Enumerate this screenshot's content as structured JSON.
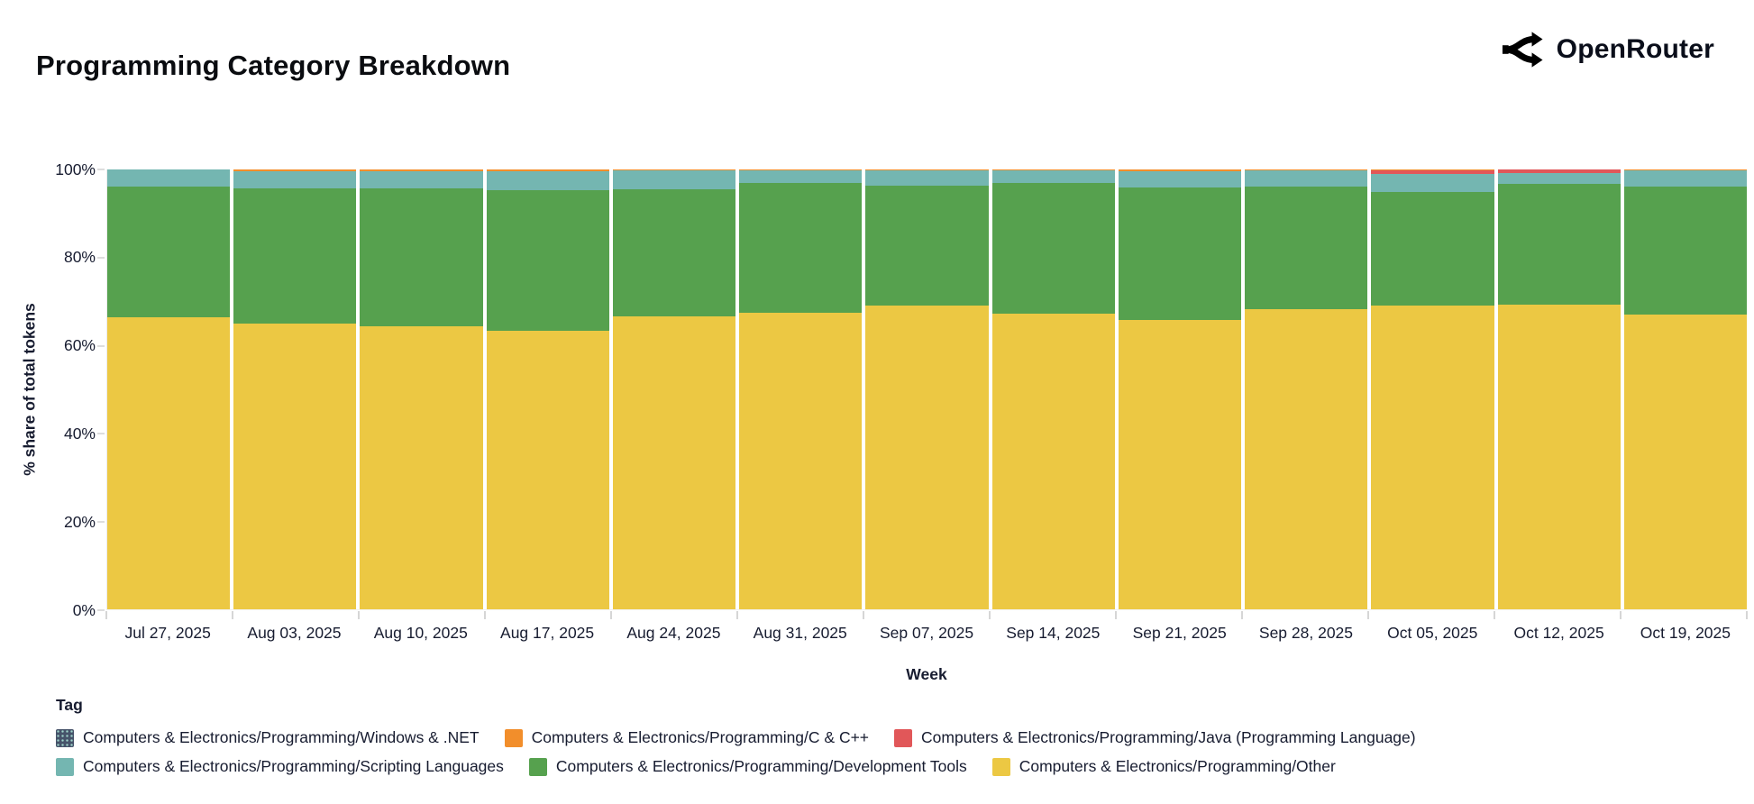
{
  "header": {
    "title": "Programming Category Breakdown",
    "brand": "OpenRouter"
  },
  "legend": {
    "title": "Tag",
    "rows": [
      [
        5,
        4,
        3
      ],
      [
        2,
        1,
        0
      ]
    ]
  },
  "chart_data": {
    "type": "bar",
    "stacked": true,
    "title": "Programming Category Breakdown",
    "xlabel": "Week",
    "ylabel": "% share of total tokens",
    "ylim": [
      0,
      100
    ],
    "yticks": [
      0,
      20,
      40,
      60,
      80,
      100
    ],
    "ytick_suffix": "%",
    "grid": false,
    "legend_position": "bottom",
    "categories": [
      "Jul 27, 2025",
      "Aug 03, 2025",
      "Aug 10, 2025",
      "Aug 17, 2025",
      "Aug 24, 2025",
      "Aug 31, 2025",
      "Sep 07, 2025",
      "Sep 14, 2025",
      "Sep 21, 2025",
      "Sep 28, 2025",
      "Oct 05, 2025",
      "Oct 12, 2025",
      "Oct 19, 2025"
    ],
    "series": [
      {
        "name": "Computers & Electronics/Programming/Other",
        "color": "#ECC843",
        "values": [
          66.3,
          65.0,
          64.4,
          63.4,
          66.5,
          67.5,
          69.1,
          67.3,
          65.8,
          68.3,
          69.1,
          69.3,
          67.1
        ]
      },
      {
        "name": "Computers & Electronics/Programming/Development Tools",
        "color": "#56A14E",
        "values": [
          29.8,
          30.7,
          31.2,
          31.9,
          28.9,
          29.5,
          27.2,
          29.6,
          30.1,
          27.8,
          25.8,
          27.4,
          29.0
        ]
      },
      {
        "name": "Computers & Electronics/Programming/Scripting Languages",
        "color": "#74B6B1",
        "values": [
          3.9,
          3.9,
          4.0,
          4.3,
          4.3,
          2.7,
          3.4,
          2.9,
          3.7,
          3.6,
          4.0,
          2.5,
          3.6
        ]
      },
      {
        "name": "Computers & Electronics/Programming/Java (Programming Language)",
        "color": "#E15759",
        "values": [
          0,
          0,
          0,
          0,
          0,
          0,
          0,
          0,
          0,
          0,
          1.0,
          0.8,
          0
        ]
      },
      {
        "name": "Computers & Electronics/Programming/C & C++",
        "color": "#F28E2B",
        "values": [
          0,
          0.4,
          0.4,
          0.4,
          0.3,
          0.3,
          0.3,
          0.2,
          0.4,
          0.3,
          0.1,
          0,
          0.3
        ]
      },
      {
        "name": "Computers & Electronics/Programming/Windows & .NET",
        "color": "#46536A",
        "pattern": true,
        "values": [
          0,
          0,
          0,
          0,
          0,
          0,
          0,
          0,
          0,
          0,
          0,
          0,
          0
        ]
      }
    ]
  }
}
